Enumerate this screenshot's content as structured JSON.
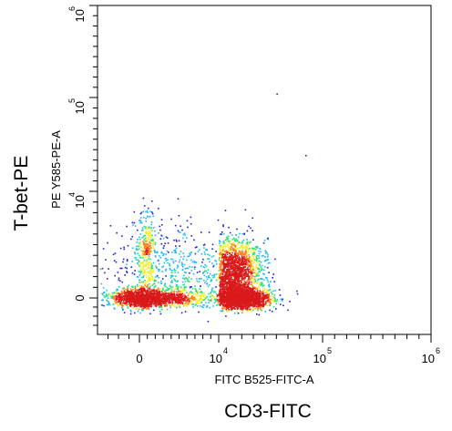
{
  "chart_data": {
    "type": "scatter",
    "style": "flow-cytometry-pseudocolor-density",
    "title": "",
    "outer_xlabel": "CD3-FITC",
    "outer_ylabel": "T-bet-PE",
    "xlabel": "FITC B525-FITC-A",
    "ylabel": "PE Y585-PE-A",
    "x_scale": "biexponential",
    "y_scale": "biexponential",
    "x_ticks": [
      {
        "label": "0",
        "value": 0
      },
      {
        "label": "10",
        "exp": "4",
        "value": 10000
      },
      {
        "label": "10",
        "exp": "5",
        "value": 100000
      },
      {
        "label": "10",
        "exp": "6",
        "value": 1000000
      }
    ],
    "y_ticks": [
      {
        "label": "0",
        "value": 0
      },
      {
        "label": "10",
        "exp": "4",
        "value": 10000
      },
      {
        "label": "10",
        "exp": "5",
        "value": 100000
      },
      {
        "label": "10",
        "exp": "6",
        "value": 1000000
      }
    ],
    "grid": false,
    "legend": "none",
    "color_scale": [
      "#1f1fd6",
      "#1fb8ff",
      "#26e07a",
      "#f2ef2a",
      "#ff7f1a",
      "#d91a1a"
    ],
    "populations": [
      {
        "x_center": 0,
        "x_spread": 1500,
        "y_center": 0,
        "y_spread": 500,
        "count": 900,
        "density": "high"
      },
      {
        "x_center": 3000,
        "x_spread": 2500,
        "y_center": 0,
        "y_spread": 450,
        "count": 650,
        "density": "medium"
      },
      {
        "x_center": 28000,
        "x_spread": 13000,
        "y_center": 0,
        "y_spread": 550,
        "count": 1900,
        "density": "high"
      },
      {
        "x_center": 22000,
        "x_spread": 12000,
        "y_center": 2600,
        "y_spread": 1500,
        "count": 1900,
        "density": "medium"
      },
      {
        "x_center": 800,
        "x_spread": 600,
        "y_center": 4200,
        "y_spread": 2000,
        "count": 320,
        "density": "medium"
      },
      {
        "x_center": 3500,
        "x_spread": 3000,
        "y_center": 3500,
        "y_spread": 2200,
        "count": 180,
        "density": "low"
      }
    ],
    "outliers": [
      {
        "x": 60000,
        "y": 140000
      },
      {
        "x": 85000,
        "y": 45000
      }
    ]
  }
}
